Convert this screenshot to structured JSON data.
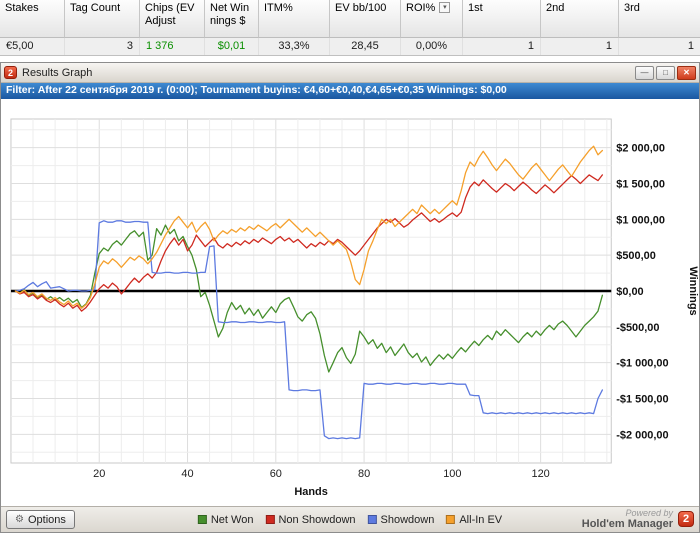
{
  "stats": {
    "columns": [
      "Stakes",
      "Tag Count",
      "Chips (EV Adjust",
      "Net Winnings $",
      "ITM%",
      "EV bb/100",
      "ROI%",
      "1st",
      "2nd",
      "3rd"
    ],
    "row": [
      "€5,00",
      "3",
      "1 376",
      "$0,01",
      "33,3%",
      "28,45",
      "0,00%",
      "1",
      "1",
      "1"
    ]
  },
  "window": {
    "title": "Results Graph",
    "logo_glyph": "2",
    "controls": {
      "minimize": "—",
      "maximize": "□",
      "close": "✕"
    }
  },
  "filter_bar": {
    "text": "Filter: After 22 сентября 2019 г. (0:00); Tournament buyins: €4,60+€0,40,€4,65+€0,35 Winnings: $0,00"
  },
  "footer": {
    "options_label": "Options",
    "powered_by": "Powered by",
    "brand": "Hold'em Manager",
    "brand_logo": "2"
  },
  "icons": {
    "roi_dropdown": "▾",
    "options": "⚙"
  },
  "colors": {
    "net_won": "#468f2d",
    "non_showdown": "#cf2a20",
    "showdown": "#5d7ae0",
    "all_in_ev": "#f5a02c",
    "zero_line": "#000000",
    "filter_bar_blue": "#1d5fa8",
    "brand_red": "#c22b12",
    "positive_green": "#0a8f00"
  },
  "chart_data": {
    "type": "line",
    "title": "",
    "xlabel": "Hands",
    "ylabel": "Winnings",
    "xlim": [
      0,
      136
    ],
    "ylim": [
      -2400,
      2400
    ],
    "x_ticks": [
      20,
      40,
      60,
      80,
      100,
      120
    ],
    "y_ticks": [
      {
        "v": 2000,
        "label": "$2 000,00"
      },
      {
        "v": 1500,
        "label": "$1 500,00"
      },
      {
        "v": 1000,
        "label": "$1 000,00"
      },
      {
        "v": 500,
        "label": "$500,00"
      },
      {
        "v": 0,
        "label": "$0,00"
      },
      {
        "v": -500,
        "label": "-$500,00"
      },
      {
        "v": -1000,
        "label": "-$1 000,00"
      },
      {
        "v": -1500,
        "label": "-$1 500,00"
      },
      {
        "v": -2000,
        "label": "-$2 000,00"
      }
    ],
    "grid": {
      "x_step": 5,
      "y_step": 250
    },
    "zero_line": true,
    "legend_position": "bottom",
    "series": [
      {
        "name": "Net Won",
        "color": "#468f2d",
        "x_start": 1,
        "values": [
          0,
          -30,
          20,
          -60,
          -30,
          -90,
          -50,
          -120,
          -80,
          -130,
          -90,
          -140,
          -100,
          -160,
          -120,
          -230,
          -180,
          -60,
          250,
          520,
          600,
          560,
          650,
          700,
          640,
          720,
          800,
          840,
          760,
          820,
          430,
          500,
          870,
          780,
          920,
          800,
          860,
          700,
          760,
          620,
          500,
          300,
          -80,
          -20,
          -200,
          -420,
          -640,
          -520,
          -300,
          -160,
          -260,
          -200,
          -320,
          -240,
          -340,
          -260,
          -380,
          -300,
          -220,
          -300,
          -180,
          -120,
          -90,
          -220,
          -360,
          -420,
          -330,
          -290,
          -380,
          -600,
          -900,
          -1130,
          -1000,
          -860,
          -790,
          -930,
          -1010,
          -880,
          -560,
          -640,
          -740,
          -680,
          -800,
          -730,
          -860,
          -780,
          -900,
          -820,
          -740,
          -860,
          -930,
          -870,
          -990,
          -920,
          -1040,
          -960,
          -890,
          -950,
          -880,
          -940,
          -860,
          -790,
          -850,
          -770,
          -700,
          -760,
          -680,
          -620,
          -680,
          -560,
          -620,
          -540,
          -600,
          -660,
          -720,
          -640,
          -580,
          -640,
          -560,
          -620,
          -540,
          -480,
          -540,
          -460,
          -420,
          -480,
          -560,
          -640,
          -560,
          -480,
          -420,
          -360,
          -280,
          -60
        ]
      },
      {
        "name": "Non Showdown",
        "color": "#cf2a20",
        "x_start": 1,
        "values": [
          0,
          -40,
          -20,
          -80,
          -50,
          -110,
          -70,
          -130,
          -160,
          -120,
          -180,
          -220,
          -170,
          -240,
          -200,
          -280,
          -230,
          -150,
          -60,
          30,
          90,
          40,
          110,
          60,
          -40,
          30,
          110,
          180,
          120,
          190,
          240,
          180,
          260,
          420,
          560,
          660,
          740,
          640,
          720,
          560,
          640,
          780,
          700,
          620,
          680,
          740,
          640,
          600,
          660,
          620,
          680,
          640,
          700,
          660,
          720,
          680,
          740,
          700,
          660,
          720,
          760,
          700,
          740,
          680,
          720,
          660,
          600,
          660,
          620,
          680,
          640,
          700,
          660,
          720,
          680,
          620,
          560,
          500,
          560,
          640,
          720,
          800,
          880,
          940,
          1000,
          960,
          1010,
          950,
          890,
          930,
          990,
          1040,
          1090,
          1030,
          970,
          1010,
          960,
          1000,
          1050,
          1090,
          1040,
          1100,
          1300,
          1450,
          1520,
          1470,
          1550,
          1490,
          1430,
          1380,
          1440,
          1500,
          1460,
          1400,
          1460,
          1520,
          1470,
          1410,
          1360,
          1420,
          1480,
          1430,
          1370,
          1430,
          1490,
          1550,
          1610,
          1560,
          1500,
          1560,
          1620,
          1580,
          1540,
          1620
        ]
      },
      {
        "name": "Showdown",
        "color": "#5d7ae0",
        "x_start": 1,
        "values": [
          0,
          10,
          30,
          80,
          120,
          60,
          100,
          130,
          40,
          50,
          60,
          30,
          0,
          10,
          10,
          0,
          0,
          10,
          20,
          950,
          980,
          960,
          960,
          980,
          980,
          960,
          960,
          970,
          970,
          960,
          960,
          260,
          250,
          250,
          260,
          260,
          250,
          250,
          260,
          260,
          250,
          250,
          260,
          260,
          620,
          630,
          -430,
          -440,
          -440,
          -430,
          -430,
          -440,
          -440,
          -430,
          -430,
          -440,
          -440,
          -430,
          -430,
          -440,
          -440,
          -430,
          -1380,
          -1390,
          -1390,
          -1380,
          -1380,
          -1390,
          -1390,
          -1380,
          -2020,
          -2060,
          -2050,
          -2060,
          -2050,
          -2060,
          -2050,
          -2060,
          -2050,
          -1290,
          -1300,
          -1300,
          -1290,
          -1290,
          -1300,
          -1300,
          -1290,
          -1290,
          -1300,
          -1300,
          -1290,
          -1290,
          -1300,
          -1300,
          -1290,
          -1290,
          -1300,
          -1300,
          -1290,
          -1290,
          -1300,
          -1300,
          -1300,
          -1450,
          -1460,
          -1460,
          -1700,
          -1710,
          -1700,
          -1710,
          -1700,
          -1710,
          -1700,
          -1710,
          -1700,
          -1710,
          -1700,
          -1710,
          -1700,
          -1710,
          -1700,
          -1710,
          -1700,
          -1710,
          -1700,
          -1710,
          -1700,
          -1710,
          -1700,
          -1710,
          -1700,
          -1710,
          -1500,
          -1380
        ]
      },
      {
        "name": "All-In EV",
        "color": "#f5a02c",
        "x_start": 1,
        "values": [
          0,
          -30,
          10,
          -50,
          -20,
          -80,
          -40,
          -100,
          -130,
          -90,
          -150,
          -190,
          -140,
          -210,
          -170,
          -240,
          -190,
          -90,
          100,
          330,
          420,
          380,
          450,
          400,
          330,
          400,
          470,
          430,
          490,
          450,
          380,
          450,
          540,
          660,
          780,
          880,
          980,
          1040,
          960,
          880,
          960,
          820,
          900,
          960,
          860,
          700,
          780,
          840,
          800,
          860,
          820,
          880,
          840,
          900,
          860,
          920,
          880,
          840,
          900,
          940,
          880,
          940,
          1000,
          940,
          880,
          820,
          880,
          820,
          760,
          820,
          760,
          700,
          640,
          700,
          640,
          580,
          400,
          160,
          90,
          300,
          560,
          700,
          860,
          1000,
          940,
          1000,
          900,
          960,
          1020,
          1080,
          1140,
          1080,
          1200,
          1140,
          1080,
          1140,
          1080,
          1140,
          1200,
          1260,
          1200,
          1400,
          1650,
          1800,
          1740,
          1860,
          1950,
          1860,
          1760,
          1680,
          1760,
          1840,
          1780,
          1700,
          1620,
          1560,
          1640,
          1720,
          1780,
          1700,
          1620,
          1540,
          1620,
          1700,
          1760,
          1680,
          1600,
          1700,
          1800,
          1880,
          1960,
          2020,
          1900,
          1960
        ]
      }
    ]
  }
}
